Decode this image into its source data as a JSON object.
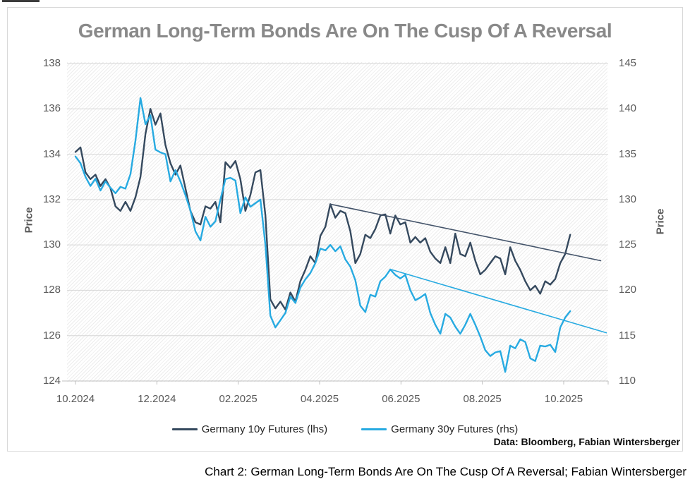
{
  "title": "German Long-Term Bonds Are On The Cusp Of A Reversal",
  "attribution": "Data: Bloomberg, Fabian Wintersberger",
  "caption": "Chart 2: German Long-Term Bonds Are On The Cusp Of A Reversal; Fabian Wintersberger",
  "colors": {
    "navy": "#35495e",
    "blue": "#27aae1",
    "title_gray": "#898989",
    "axis_text": "#595959",
    "gridline": "#d6d6d6",
    "axis_line": "#bfbfbf",
    "box_border": "#d9d9d9"
  },
  "chart_data": {
    "type": "line",
    "title": "German Long-Term Bonds Are On The Cusp Of A Reversal",
    "grid": true,
    "legend_position": "bottom-center",
    "left_axis": {
      "label": "Price",
      "min": 124,
      "max": 138,
      "ticks": [
        138,
        136,
        134,
        132,
        130,
        128,
        126,
        124
      ]
    },
    "right_axis": {
      "label": "Price",
      "min": 110,
      "max": 145,
      "ticks": [
        145,
        140,
        135,
        130,
        125,
        120,
        115,
        110
      ]
    },
    "x_axis": {
      "ticks": [
        {
          "m": 0,
          "label": "10.2024"
        },
        {
          "m": 2,
          "label": "12.2024"
        },
        {
          "m": 4,
          "label": "02.2025"
        },
        {
          "m": 6,
          "label": "04.2025"
        },
        {
          "m": 8,
          "label": "06.2025"
        },
        {
          "m": 10,
          "label": "08.2025"
        },
        {
          "m": 12,
          "label": "10.2025"
        }
      ],
      "series_m_start": 0,
      "series_m_end": 12.16
    },
    "series": [
      {
        "name": "Germany 10y Futures (lhs)",
        "axis": "left",
        "color": "#35495e",
        "values": [
          134.1,
          134.3,
          133.2,
          132.9,
          133.1,
          132.6,
          132.9,
          132.5,
          131.7,
          131.5,
          131.9,
          131.5,
          132.1,
          133.0,
          134.9,
          136.0,
          135.3,
          135.8,
          134.4,
          133.6,
          133.1,
          133.5,
          132.5,
          131.5,
          131.0,
          130.9,
          131.7,
          131.6,
          131.9,
          131.0,
          133.65,
          133.4,
          133.7,
          132.9,
          131.5,
          132.2,
          133.2,
          133.3,
          131.3,
          127.6,
          127.2,
          127.5,
          127.15,
          127.9,
          127.5,
          128.4,
          128.9,
          129.5,
          129.2,
          130.4,
          130.8,
          131.8,
          131.2,
          131.5,
          131.4,
          130.6,
          129.2,
          129.6,
          130.45,
          130.3,
          130.7,
          131.3,
          131.35,
          130.5,
          131.3,
          130.9,
          131.0,
          130.1,
          130.35,
          130.1,
          130.3,
          129.7,
          129.4,
          129.2,
          129.9,
          129.2,
          130.5,
          129.6,
          129.5,
          130.1,
          129.3,
          128.7,
          128.9,
          129.2,
          129.5,
          129.4,
          128.7,
          129.9,
          129.3,
          128.9,
          128.4,
          128.0,
          128.2,
          127.85,
          128.4,
          128.25,
          128.5,
          129.2,
          129.6,
          130.45
        ]
      },
      {
        "name": "Germany 30y Futures (rhs)",
        "axis": "right",
        "color": "#27aae1",
        "values": [
          134.75,
          134.0,
          132.5,
          131.5,
          132.3,
          131.0,
          132.0,
          131.3,
          130.7,
          131.4,
          131.2,
          132.8,
          136.5,
          141.2,
          138.3,
          139.3,
          135.5,
          135.2,
          135.0,
          132.0,
          133.25,
          132.0,
          130.5,
          128.8,
          126.5,
          125.5,
          128.1,
          127.0,
          127.6,
          130.0,
          132.25,
          132.4,
          132.1,
          128.5,
          130.25,
          129.2,
          129.6,
          130.0,
          125.0,
          117.2,
          115.9,
          116.7,
          117.5,
          119.3,
          118.6,
          120.3,
          121.2,
          121.9,
          123.0,
          124.6,
          124.4,
          125.0,
          124.3,
          124.85,
          123.4,
          122.6,
          121.1,
          118.3,
          117.6,
          119.5,
          119.3,
          121.0,
          121.5,
          122.3,
          121.7,
          121.3,
          121.7,
          120.0,
          118.9,
          119.2,
          119.6,
          117.5,
          116.2,
          115.2,
          117.4,
          117.0,
          116.0,
          115.2,
          116.2,
          117.4,
          116.2,
          114.9,
          113.4,
          112.75,
          113.15,
          113.3,
          111.0,
          113.9,
          113.6,
          114.6,
          114.3,
          112.5,
          112.2,
          113.9,
          113.8,
          114.0,
          113.2,
          115.9,
          117.0,
          117.7
        ]
      }
    ],
    "trendlines": [
      {
        "name": "10y downtrend line",
        "axis": "left",
        "color": "#44546a",
        "m1": 6.26,
        "v1": 131.8,
        "m2": 12.92,
        "v2": 129.3
      },
      {
        "name": "30y downtrend line",
        "axis": "right",
        "color": "#27aae1",
        "m1": 7.75,
        "v1": 122.3,
        "m2": 13.06,
        "v2": 115.3
      }
    ]
  }
}
